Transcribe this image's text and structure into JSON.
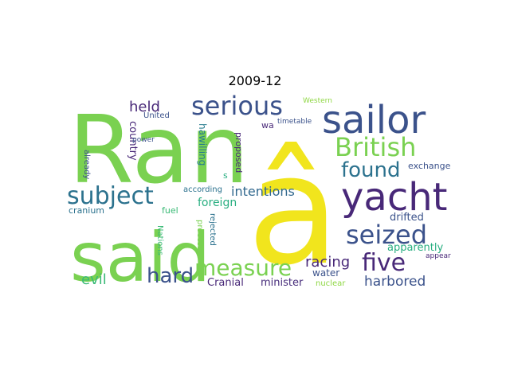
{
  "title": "2009-12",
  "words": [
    {
      "text": "Ran",
      "color": "#7ad151"
    },
    {
      "text": "â",
      "color": "#f1e51d"
    },
    {
      "text": "said",
      "color": "#7ad151"
    },
    {
      "text": "sailor",
      "color": "#3b528b"
    },
    {
      "text": "yacht",
      "color": "#482878"
    },
    {
      "text": "serious",
      "color": "#3b528b"
    },
    {
      "text": "British",
      "color": "#7ad151"
    },
    {
      "text": "subject",
      "color": "#2c728e"
    },
    {
      "text": "seized",
      "color": "#3b528b"
    },
    {
      "text": "five",
      "color": "#482878"
    },
    {
      "text": "measure",
      "color": "#7ad151"
    },
    {
      "text": "found",
      "color": "#2c728e"
    },
    {
      "text": "hard",
      "color": "#3b528b"
    },
    {
      "text": "harbored",
      "color": "#3b528b"
    },
    {
      "text": "intentions",
      "color": "#31688e"
    },
    {
      "text": "racing",
      "color": "#482878"
    },
    {
      "text": "evil",
      "color": "#3aba76"
    },
    {
      "text": "held",
      "color": "#482878"
    },
    {
      "text": "minister",
      "color": "#472d7b"
    },
    {
      "text": "Cranial",
      "color": "#482878"
    },
    {
      "text": "apparently",
      "color": "#28ae80"
    },
    {
      "text": "drifted",
      "color": "#3b528b"
    },
    {
      "text": "water",
      "color": "#3b528b"
    },
    {
      "text": "foreign",
      "color": "#28ae80"
    },
    {
      "text": "country",
      "color": "#482878"
    },
    {
      "text": "hawilling",
      "color": "#287c8e"
    },
    {
      "text": "exchange",
      "color": "#3b528b"
    },
    {
      "text": "nuclear",
      "color": "#8fd744"
    },
    {
      "text": "United",
      "color": "#3b528b"
    },
    {
      "text": "wa",
      "color": "#482878"
    },
    {
      "text": "timetable",
      "color": "#3b528b"
    },
    {
      "text": "Western",
      "color": "#8fd744"
    },
    {
      "text": "power",
      "color": "#3b528b"
    },
    {
      "text": "proposed",
      "color": "#482878"
    },
    {
      "text": "s",
      "color": "#28ae80"
    },
    {
      "text": "according",
      "color": "#2c728e"
    },
    {
      "text": "fuel",
      "color": "#3aba76"
    },
    {
      "text": "cranium",
      "color": "#2c728e"
    },
    {
      "text": "already",
      "color": "#3b528b"
    },
    {
      "text": "Nations",
      "color": "#3aba76"
    },
    {
      "text": "process",
      "color": "#7ad151"
    },
    {
      "text": "rejected",
      "color": "#2c728e"
    },
    {
      "text": "appear",
      "color": "#482878"
    }
  ]
}
